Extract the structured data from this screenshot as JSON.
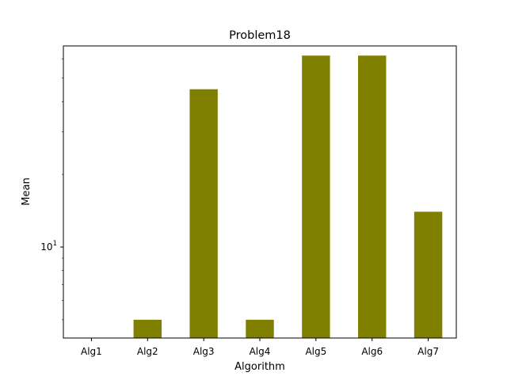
{
  "chart_data": {
    "type": "bar",
    "title": "Problem18",
    "xlabel": "Algorithm",
    "ylabel": "Mean",
    "yscale": "log",
    "categories": [
      "Alg1",
      "Alg2",
      "Alg3",
      "Alg4",
      "Alg5",
      "Alg6",
      "Alg7"
    ],
    "values": [
      4.0,
      5.0,
      45.0,
      5.0,
      62.0,
      62.0,
      14.0
    ],
    "ylim": [
      4.2,
      68
    ],
    "yticks": [
      {
        "value": 10,
        "base": "10",
        "exp": "1"
      }
    ],
    "bar_color": "#808000",
    "grid": false,
    "legend": null
  }
}
